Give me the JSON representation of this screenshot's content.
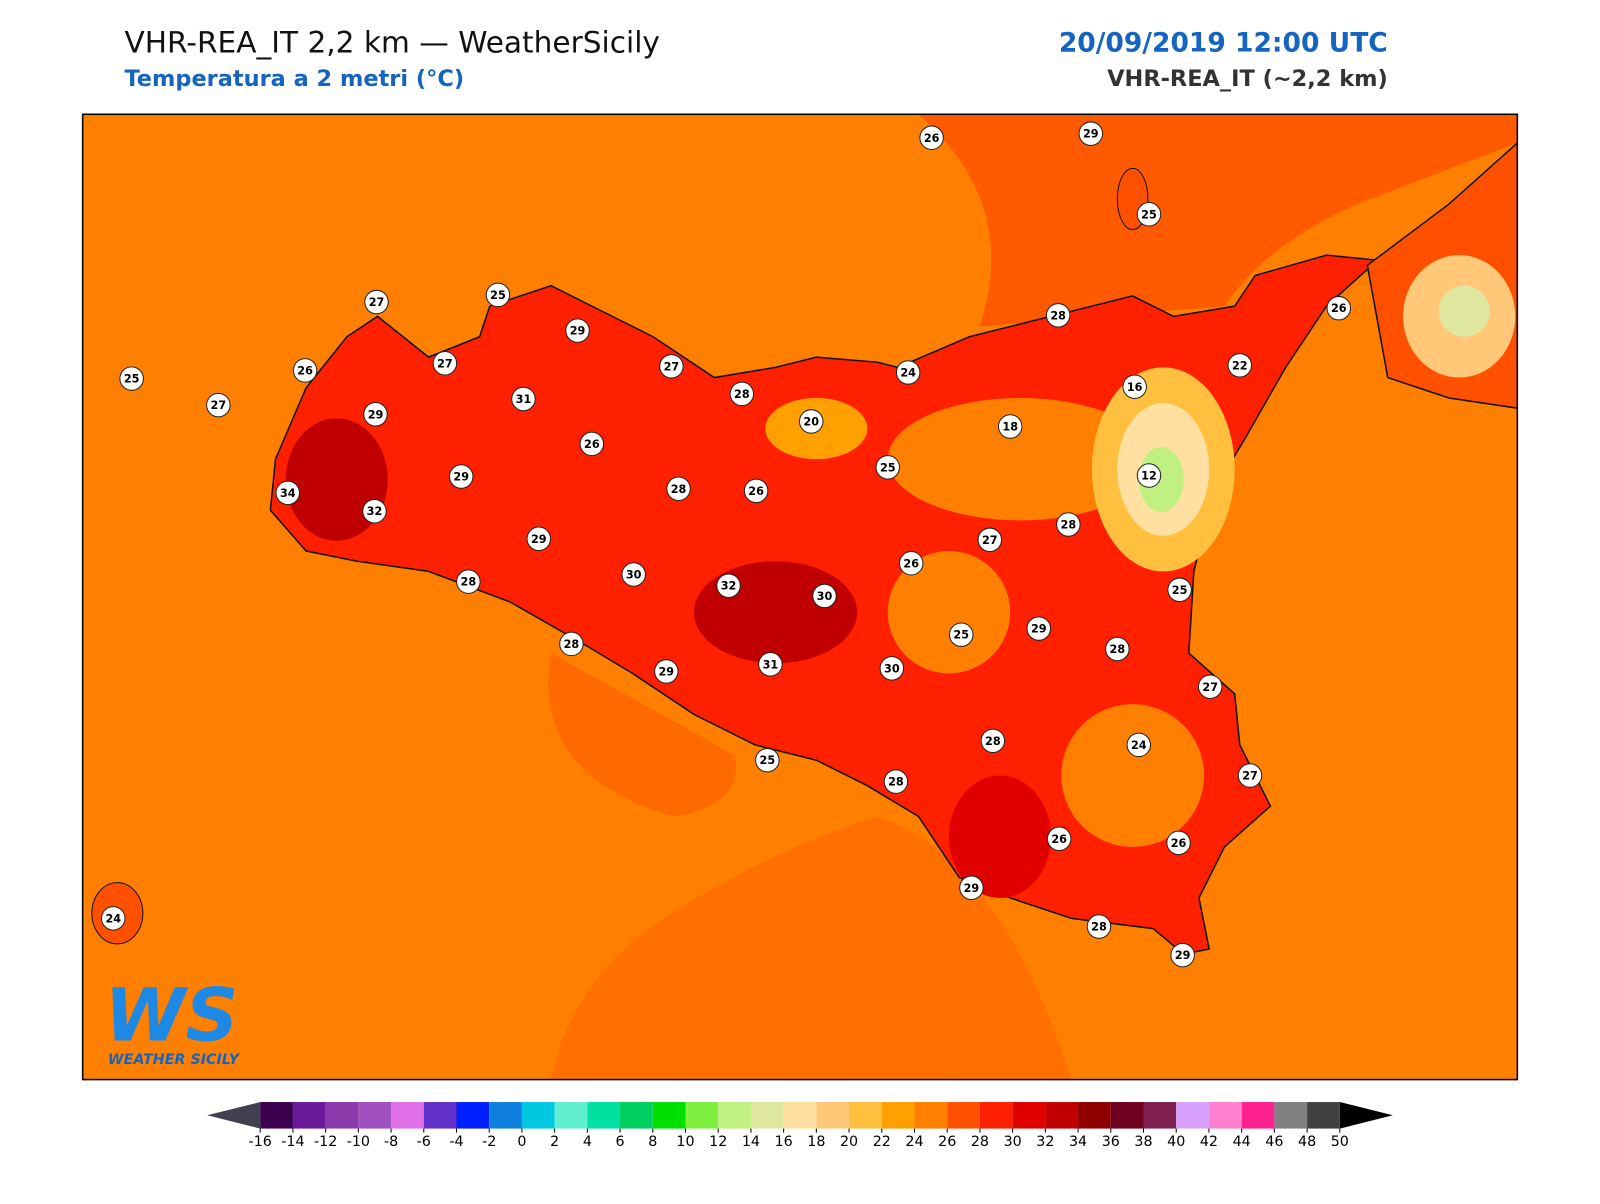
{
  "header": {
    "title": "VHR-REA_IT 2,2 km — WeatherSicily",
    "subtitle": "Temperatura a 2 metri (°C)",
    "datetime": "20/09/2019 12:00 UTC",
    "model": "VHR-REA_IT (~2,2 km)"
  },
  "stations": [
    26,
    29,
    25,
    27,
    25,
    29,
    28,
    26,
    25,
    26,
    27,
    27,
    24,
    22,
    27,
    29,
    31,
    28,
    20,
    16,
    18,
    26,
    25,
    12,
    29,
    34,
    32,
    28,
    26,
    28,
    29,
    27,
    26,
    30,
    32,
    30,
    28,
    25,
    29,
    25,
    28,
    28,
    29,
    31,
    30,
    27,
    28,
    24,
    25,
    28,
    27,
    26,
    26,
    29,
    24,
    28,
    29
  ],
  "colorbar": {
    "ticks": [
      -16,
      -14,
      -12,
      -10,
      -8,
      -6,
      -4,
      -2,
      0,
      2,
      4,
      6,
      8,
      10,
      12,
      14,
      16,
      18,
      20,
      22,
      24,
      26,
      28,
      30,
      32,
      34,
      36,
      38,
      40,
      42,
      44,
      46,
      48,
      50
    ],
    "colors": [
      "#3b0050",
      "#6a1a9a",
      "#8a3aaa",
      "#a050c0",
      "#e070e8",
      "#6030c8",
      "#0020ff",
      "#1080e0",
      "#00c8e0",
      "#60f0d0",
      "#00e0a0",
      "#00d060",
      "#00e000",
      "#80f040",
      "#c0f080",
      "#e0e8a0",
      "#ffe0a0",
      "#ffc878",
      "#ffc040",
      "#ffa000",
      "#ff8000",
      "#ff5000",
      "#ff2000",
      "#e00000",
      "#c00000",
      "#900000",
      "#700020",
      "#802050",
      "#d8a0ff",
      "#ff80d0",
      "#ff2090",
      "#808080",
      "#404040"
    ],
    "under_color": "#404050",
    "over_color": "#000000"
  },
  "logo": {
    "mark": "WS",
    "text": "WEATHER SICILY"
  }
}
